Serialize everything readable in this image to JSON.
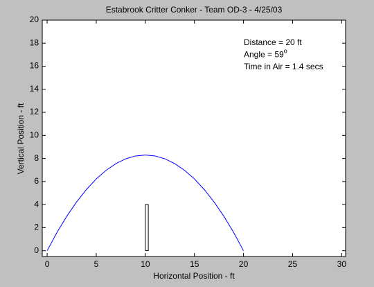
{
  "chart_data": {
    "type": "line",
    "title": "Estabrook Critter Conker - Team OD-3 - 4/25/03",
    "xlabel": "Horizontal Position - ft",
    "ylabel": "Vertical Position - ft",
    "annotations": [
      {
        "text": "Distance = 20 ft"
      },
      {
        "text": "Angle = 59",
        "superscript": "o"
      },
      {
        "text": "Time in Air = 1.4 secs"
      }
    ],
    "series": [
      {
        "color": "#0000ff",
        "x": [
          0,
          1,
          2,
          3,
          4,
          5,
          6,
          7,
          8,
          9,
          10,
          11,
          12,
          13,
          14,
          15,
          16,
          17,
          18,
          19,
          20
        ],
        "values": [
          0,
          1.58,
          2.99,
          4.23,
          5.31,
          6.23,
          6.97,
          7.55,
          7.97,
          8.22,
          8.3,
          8.22,
          7.97,
          7.55,
          6.97,
          6.23,
          5.31,
          4.23,
          2.99,
          1.58,
          0
        ]
      },
      {
        "color": "#000000",
        "x": [
          10,
          10,
          10.3,
          10.3,
          10
        ],
        "values": [
          0,
          4,
          4,
          0,
          0
        ]
      }
    ],
    "xlim": [
      -0.5,
      30.4
    ],
    "ylim": [
      -0.5,
      20
    ],
    "xticks": [
      0,
      5,
      10,
      15,
      20,
      25,
      30
    ],
    "yticks": [
      0,
      2,
      4,
      6,
      8,
      10,
      12,
      14,
      16,
      18,
      20
    ],
    "grid": false
  }
}
